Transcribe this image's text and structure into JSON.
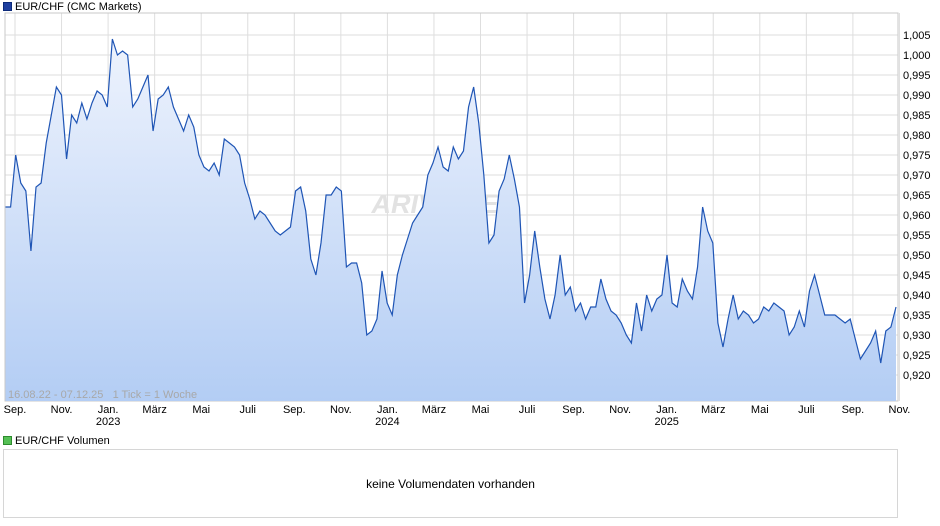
{
  "price_legend": {
    "label": "EUR/CHF (CMC Markets)",
    "color": "#1f3f9f"
  },
  "volume_legend": {
    "label": "EUR/CHF Volumen",
    "color": "#55c055"
  },
  "volume_panel": {
    "message": "keine Volumendaten vorhanden"
  },
  "range_note": "16.08.22 - 07.12.25   1 Tick = 1 Woche",
  "watermark": "ARIVA.DE",
  "chart_data": {
    "type": "area",
    "title": "",
    "xlabel": "",
    "ylabel": "",
    "grid": true,
    "legend": "top-left",
    "ylim": [
      0.915,
      1.01
    ],
    "y_ticks": [
      "1,005",
      "1,000",
      "0,995",
      "0,990",
      "0,985",
      "0,980",
      "0,975",
      "0,970",
      "0,965",
      "0,960",
      "0,955",
      "0,950",
      "0,945",
      "0,940",
      "0,935",
      "0,930",
      "0,925",
      "0,920"
    ],
    "x_ticks": [
      {
        "label": "Sep.",
        "year": ""
      },
      {
        "label": "Nov.",
        "year": ""
      },
      {
        "label": "Jan.",
        "year": "2023"
      },
      {
        "label": "März",
        "year": ""
      },
      {
        "label": "Mai",
        "year": ""
      },
      {
        "label": "Juli",
        "year": ""
      },
      {
        "label": "Sep.",
        "year": ""
      },
      {
        "label": "Nov.",
        "year": ""
      },
      {
        "label": "Jan.",
        "year": "2024"
      },
      {
        "label": "März",
        "year": ""
      },
      {
        "label": "Mai",
        "year": ""
      },
      {
        "label": "Juli",
        "year": ""
      },
      {
        "label": "Sep.",
        "year": ""
      },
      {
        "label": "Nov.",
        "year": ""
      },
      {
        "label": "Jan.",
        "year": "2025"
      },
      {
        "label": "März",
        "year": ""
      },
      {
        "label": "Mai",
        "year": ""
      },
      {
        "label": "Juli",
        "year": ""
      },
      {
        "label": "Sep.",
        "year": ""
      },
      {
        "label": "Nov.",
        "year": ""
      }
    ],
    "line_color": "#1f55b5",
    "fill_top_color": "#eef3fd",
    "fill_bottom_color": "#b3cdf4",
    "series": [
      {
        "values": [
          0.962,
          0.962,
          0.975,
          0.968,
          0.966,
          0.951,
          0.967,
          0.968,
          0.978,
          0.985,
          0.992,
          0.99,
          0.974,
          0.985,
          0.983,
          0.988,
          0.984,
          0.988,
          0.991,
          0.99,
          0.987,
          1.004,
          1.0,
          1.001,
          1.0,
          0.987,
          0.989,
          0.992,
          0.995,
          0.981,
          0.989,
          0.99,
          0.992,
          0.987,
          0.984,
          0.981,
          0.985,
          0.982,
          0.975,
          0.972,
          0.971,
          0.973,
          0.97,
          0.979,
          0.978,
          0.977,
          0.975,
          0.968,
          0.964,
          0.959,
          0.961,
          0.96,
          0.958,
          0.956,
          0.955,
          0.956,
          0.957,
          0.966,
          0.967,
          0.961,
          0.949,
          0.945,
          0.953,
          0.965,
          0.965,
          0.967,
          0.966,
          0.947,
          0.948,
          0.948,
          0.943,
          0.93,
          0.931,
          0.934,
          0.946,
          0.938,
          0.935,
          0.945,
          0.95,
          0.954,
          0.958,
          0.96,
          0.962,
          0.97,
          0.973,
          0.977,
          0.972,
          0.971,
          0.977,
          0.974,
          0.976,
          0.987,
          0.992,
          0.983,
          0.97,
          0.953,
          0.955,
          0.966,
          0.969,
          0.975,
          0.969,
          0.962,
          0.938,
          0.945,
          0.956,
          0.947,
          0.939,
          0.934,
          0.94,
          0.95,
          0.94,
          0.942,
          0.936,
          0.938,
          0.934,
          0.937,
          0.937,
          0.944,
          0.939,
          0.936,
          0.935,
          0.933,
          0.93,
          0.928,
          0.938,
          0.931,
          0.94,
          0.936,
          0.939,
          0.94,
          0.95,
          0.938,
          0.937,
          0.944,
          0.941,
          0.939,
          0.947,
          0.962,
          0.956,
          0.953,
          0.933,
          0.927,
          0.934,
          0.94,
          0.934,
          0.936,
          0.935,
          0.933,
          0.934,
          0.937,
          0.936,
          0.938,
          0.937,
          0.936,
          0.93,
          0.932,
          0.936,
          0.932,
          0.941,
          0.945,
          0.94,
          0.935,
          0.935,
          0.935,
          0.934,
          0.933,
          0.934,
          0.929,
          0.924,
          0.926,
          0.928,
          0.931,
          0.923,
          0.931,
          0.932,
          0.937
        ]
      }
    ]
  }
}
